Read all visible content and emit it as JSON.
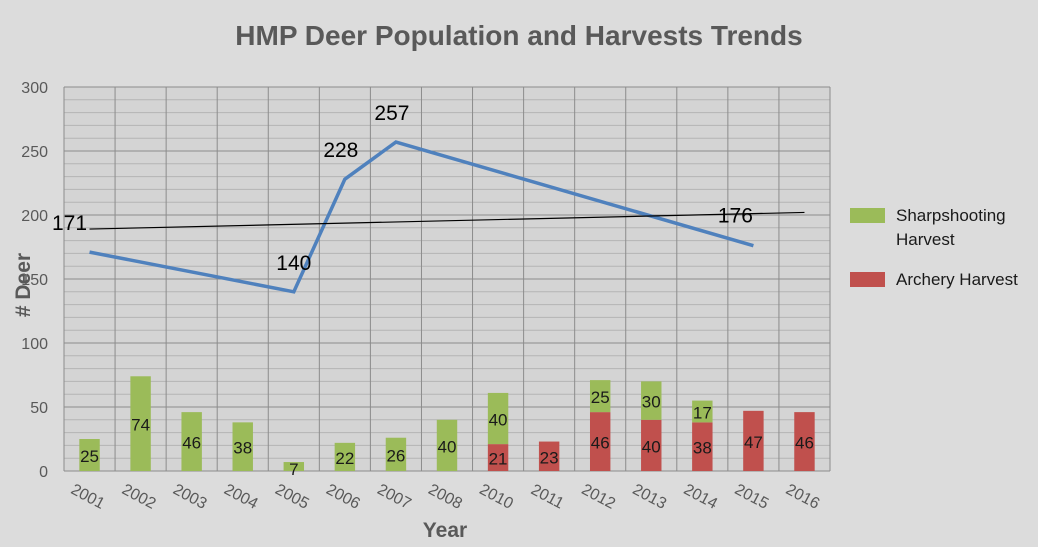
{
  "chart_data": {
    "type": "bar",
    "title": "HMP Deer Population and Harvests Trends",
    "xlabel": "Year",
    "ylabel": "# Deer",
    "ylim": [
      0,
      300
    ],
    "yticks": [
      0,
      50,
      100,
      150,
      200,
      250,
      300
    ],
    "grid": true,
    "legend_position": "right",
    "categories": [
      "2001",
      "2002",
      "2003",
      "2004",
      "2005",
      "2006",
      "2007",
      "2008",
      "2010",
      "2011",
      "2012",
      "2013",
      "2014",
      "2015",
      "2016"
    ],
    "series": [
      {
        "name": "Archery Harvest",
        "type": "stacked-bar",
        "color": "#c0504d",
        "values": [
          0,
          0,
          0,
          0,
          0,
          0,
          0,
          0,
          21,
          23,
          46,
          40,
          38,
          47,
          46
        ],
        "labels": [
          "",
          "",
          "",
          "",
          "",
          "",
          "",
          "",
          "21",
          "23",
          "46",
          "40",
          "38",
          "47",
          "46"
        ]
      },
      {
        "name": "Sharpshooting Harvest",
        "type": "stacked-bar",
        "color": "#9bbb59",
        "values": [
          25,
          74,
          46,
          38,
          7,
          22,
          26,
          40,
          40,
          0,
          25,
          30,
          17,
          0,
          0
        ],
        "labels": [
          "25",
          "74",
          "46",
          "38",
          "7",
          "22",
          "26",
          "40",
          "40",
          "",
          "25",
          "30",
          "17",
          "",
          ""
        ]
      },
      {
        "type": "line",
        "color": "#4f81bd",
        "points": [
          {
            "x": "2001",
            "y": 171,
            "label": "171"
          },
          {
            "x": "2005",
            "y": 140,
            "label": "140"
          },
          {
            "x": "2006",
            "y": 228,
            "label": "228"
          },
          {
            "x": "2007",
            "y": 257,
            "label": "257"
          },
          {
            "x": "2015",
            "y": 176,
            "label": "176"
          }
        ]
      },
      {
        "type": "trendline",
        "color": "#000000",
        "points": [
          {
            "x": "2001",
            "y": 189
          },
          {
            "x": "2016",
            "y": 202
          }
        ]
      }
    ],
    "legend": [
      {
        "label_lines": [
          "Sharpshooting",
          "Harvest"
        ],
        "color": "#9bbb59"
      },
      {
        "label_lines": [
          "Archery Harvest"
        ],
        "color": "#c0504d"
      }
    ]
  }
}
